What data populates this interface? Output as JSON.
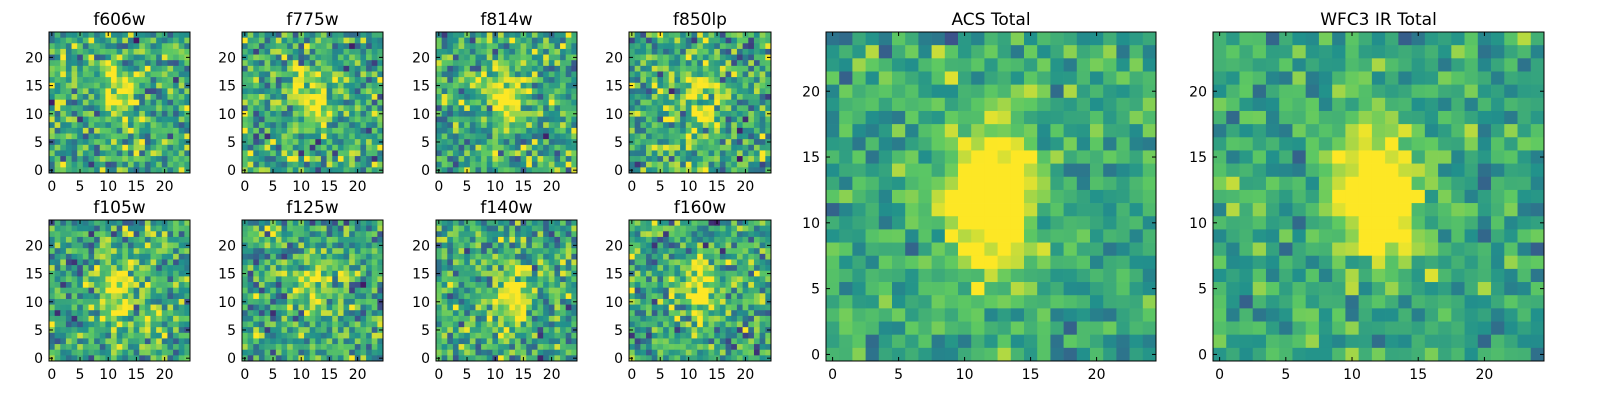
{
  "chart_data": [
    {
      "type": "heatmap",
      "title": "f606w",
      "xticks": [
        "0",
        "5",
        "10",
        "15",
        "20"
      ],
      "yticks": [
        "0",
        "5",
        "10",
        "15",
        "20"
      ],
      "xlim": [
        -0.5,
        24.5
      ],
      "ylim": [
        -0.5,
        24.5
      ],
      "grid_size": 25,
      "blob_center": [
        12,
        13
      ],
      "blob_strength": 0.35,
      "noise_level": 0.9,
      "seed": 11
    },
    {
      "type": "heatmap",
      "title": "f775w",
      "xticks": [
        "0",
        "5",
        "10",
        "15",
        "20"
      ],
      "yticks": [
        "0",
        "5",
        "10",
        "15",
        "20"
      ],
      "xlim": [
        -0.5,
        24.5
      ],
      "ylim": [
        -0.5,
        24.5
      ],
      "grid_size": 25,
      "blob_center": [
        12,
        13
      ],
      "blob_strength": 0.4,
      "noise_level": 0.9,
      "seed": 23
    },
    {
      "type": "heatmap",
      "title": "f814w",
      "xticks": [
        "0",
        "5",
        "10",
        "15",
        "20"
      ],
      "yticks": [
        "0",
        "5",
        "10",
        "15",
        "20"
      ],
      "xlim": [
        -0.5,
        24.5
      ],
      "ylim": [
        -0.5,
        24.5
      ],
      "grid_size": 25,
      "blob_center": [
        12,
        13
      ],
      "blob_strength": 0.45,
      "noise_level": 0.85,
      "seed": 37
    },
    {
      "type": "heatmap",
      "title": "f850lp",
      "xticks": [
        "0",
        "5",
        "10",
        "15",
        "20"
      ],
      "yticks": [
        "0",
        "5",
        "10",
        "15",
        "20"
      ],
      "xlim": [
        -0.5,
        24.5
      ],
      "ylim": [
        -0.5,
        24.5
      ],
      "grid_size": 25,
      "blob_center": [
        12,
        13
      ],
      "blob_strength": 0.35,
      "noise_level": 0.9,
      "seed": 41
    },
    {
      "type": "heatmap",
      "title": "f105w",
      "xticks": [
        "0",
        "5",
        "10",
        "15",
        "20"
      ],
      "yticks": [
        "0",
        "5",
        "10",
        "15",
        "20"
      ],
      "xlim": [
        -0.5,
        24.5
      ],
      "ylim": [
        -0.5,
        24.5
      ],
      "grid_size": 25,
      "blob_center": [
        12,
        12
      ],
      "blob_strength": 0.45,
      "noise_level": 0.85,
      "seed": 53
    },
    {
      "type": "heatmap",
      "title": "f125w",
      "xticks": [
        "0",
        "5",
        "10",
        "15",
        "20"
      ],
      "yticks": [
        "0",
        "5",
        "10",
        "15",
        "20"
      ],
      "xlim": [
        -0.5,
        24.5
      ],
      "ylim": [
        -0.5,
        24.5
      ],
      "grid_size": 25,
      "blob_center": [
        12,
        12
      ],
      "blob_strength": 0.35,
      "noise_level": 0.85,
      "seed": 67
    },
    {
      "type": "heatmap",
      "title": "f140w",
      "xticks": [
        "0",
        "5",
        "10",
        "15",
        "20"
      ],
      "yticks": [
        "0",
        "5",
        "10",
        "15",
        "20"
      ],
      "xlim": [
        -0.5,
        24.5
      ],
      "ylim": [
        -0.5,
        24.5
      ],
      "grid_size": 25,
      "blob_center": [
        13,
        11
      ],
      "blob_strength": 0.4,
      "noise_level": 0.85,
      "seed": 79
    },
    {
      "type": "heatmap",
      "title": "f160w",
      "xticks": [
        "0",
        "5",
        "10",
        "15",
        "20"
      ],
      "yticks": [
        "0",
        "5",
        "10",
        "15",
        "20"
      ],
      "xlim": [
        -0.5,
        24.5
      ],
      "ylim": [
        -0.5,
        24.5
      ],
      "grid_size": 25,
      "blob_center": [
        12,
        12
      ],
      "blob_strength": 0.4,
      "noise_level": 0.85,
      "seed": 83
    },
    {
      "type": "heatmap",
      "title": "ACS Total",
      "xticks": [
        "0",
        "5",
        "10",
        "15",
        "20"
      ],
      "yticks": [
        "0",
        "5",
        "10",
        "15",
        "20"
      ],
      "xlim": [
        -0.5,
        24.5
      ],
      "ylim": [
        -0.5,
        24.5
      ],
      "grid_size": 25,
      "blob_center": [
        12,
        12
      ],
      "blob_strength": 0.75,
      "noise_level": 0.55,
      "seed": 97
    },
    {
      "type": "heatmap",
      "title": "WFC3 IR Total",
      "xticks": [
        "0",
        "5",
        "10",
        "15",
        "20"
      ],
      "yticks": [
        "0",
        "5",
        "10",
        "15",
        "20"
      ],
      "xlim": [
        -0.5,
        24.5
      ],
      "ylim": [
        -0.5,
        24.5
      ],
      "grid_size": 25,
      "blob_center": [
        12,
        12
      ],
      "blob_strength": 0.75,
      "noise_level": 0.55,
      "seed": 101
    }
  ],
  "colormap": [
    "#440154",
    "#3b528b",
    "#21918c",
    "#5ec962",
    "#fde725"
  ]
}
